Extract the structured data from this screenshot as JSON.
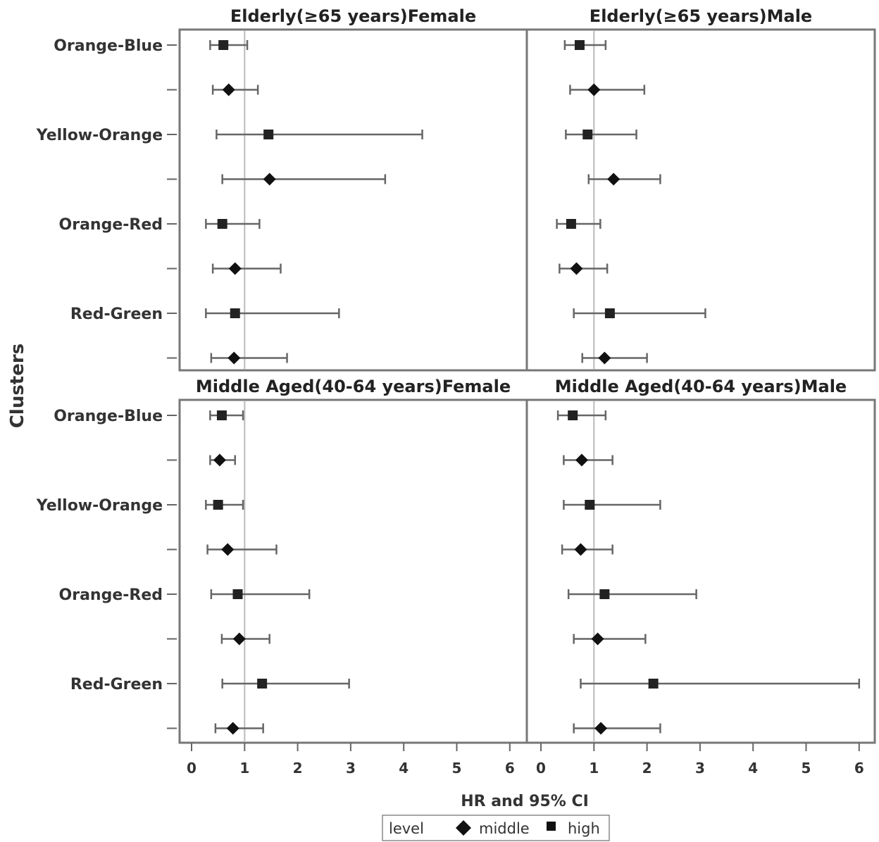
{
  "chart_data": {
    "type": "forest",
    "xlabel": "HR and 95% CI",
    "ylabel": "Clusters",
    "xlim": [
      -0.2,
      6.3
    ],
    "xticks": [
      0,
      1,
      2,
      3,
      4,
      5,
      6
    ],
    "reference_line": 1,
    "category_labels": [
      "Orange-Blue",
      "",
      "Yellow-Orange",
      "",
      "Orange-Red",
      "",
      "Red-Green",
      ""
    ],
    "legend": {
      "title": "level",
      "items": [
        {
          "name": "middle",
          "marker": "diamond"
        },
        {
          "name": "high",
          "marker": "square"
        }
      ]
    },
    "panels": [
      {
        "title": "Elderly(≥65 years)Female",
        "rows": [
          {
            "level": "high",
            "hr": 0.6,
            "lo": 0.35,
            "hi": 1.05
          },
          {
            "level": "middle",
            "hr": 0.7,
            "lo": 0.4,
            "hi": 1.25
          },
          {
            "level": "high",
            "hr": 1.45,
            "lo": 0.47,
            "hi": 4.35
          },
          {
            "level": "middle",
            "hr": 1.47,
            "lo": 0.58,
            "hi": 3.65
          },
          {
            "level": "high",
            "hr": 0.58,
            "lo": 0.27,
            "hi": 1.28
          },
          {
            "level": "middle",
            "hr": 0.82,
            "lo": 0.4,
            "hi": 1.68
          },
          {
            "level": "high",
            "hr": 0.82,
            "lo": 0.27,
            "hi": 2.78
          },
          {
            "level": "middle",
            "hr": 0.8,
            "lo": 0.37,
            "hi": 1.8
          }
        ]
      },
      {
        "title": "Elderly(≥65 years)Male",
        "rows": [
          {
            "level": "high",
            "hr": 0.73,
            "lo": 0.45,
            "hi": 1.22
          },
          {
            "level": "middle",
            "hr": 1.0,
            "lo": 0.55,
            "hi": 1.95
          },
          {
            "level": "high",
            "hr": 0.88,
            "lo": 0.47,
            "hi": 1.8
          },
          {
            "level": "middle",
            "hr": 1.37,
            "lo": 0.9,
            "hi": 2.25
          },
          {
            "level": "high",
            "hr": 0.57,
            "lo": 0.3,
            "hi": 1.12
          },
          {
            "level": "middle",
            "hr": 0.67,
            "lo": 0.35,
            "hi": 1.25
          },
          {
            "level": "high",
            "hr": 1.3,
            "lo": 0.62,
            "hi": 3.1
          },
          {
            "level": "middle",
            "hr": 1.2,
            "lo": 0.78,
            "hi": 2.0
          }
        ]
      },
      {
        "title": "Middle Aged(40-64 years)Female",
        "rows": [
          {
            "level": "high",
            "hr": 0.57,
            "lo": 0.35,
            "hi": 0.97
          },
          {
            "level": "middle",
            "hr": 0.53,
            "lo": 0.35,
            "hi": 0.82
          },
          {
            "level": "high",
            "hr": 0.5,
            "lo": 0.27,
            "hi": 0.97
          },
          {
            "level": "middle",
            "hr": 0.68,
            "lo": 0.3,
            "hi": 1.6
          },
          {
            "level": "high",
            "hr": 0.87,
            "lo": 0.37,
            "hi": 2.22
          },
          {
            "level": "middle",
            "hr": 0.9,
            "lo": 0.57,
            "hi": 1.47
          },
          {
            "level": "high",
            "hr": 1.33,
            "lo": 0.58,
            "hi": 2.97
          },
          {
            "level": "middle",
            "hr": 0.78,
            "lo": 0.45,
            "hi": 1.35
          }
        ]
      },
      {
        "title": "Middle Aged(40-64 years)Male",
        "rows": [
          {
            "level": "high",
            "hr": 0.6,
            "lo": 0.32,
            "hi": 1.22
          },
          {
            "level": "middle",
            "hr": 0.77,
            "lo": 0.43,
            "hi": 1.35
          },
          {
            "level": "high",
            "hr": 0.92,
            "lo": 0.43,
            "hi": 2.25
          },
          {
            "level": "middle",
            "hr": 0.75,
            "lo": 0.4,
            "hi": 1.35
          },
          {
            "level": "high",
            "hr": 1.2,
            "lo": 0.52,
            "hi": 2.93
          },
          {
            "level": "middle",
            "hr": 1.07,
            "lo": 0.62,
            "hi": 1.97
          },
          {
            "level": "high",
            "hr": 2.12,
            "lo": 0.75,
            "hi": 6.0
          },
          {
            "level": "middle",
            "hr": 1.13,
            "lo": 0.62,
            "hi": 2.25
          }
        ]
      }
    ]
  }
}
